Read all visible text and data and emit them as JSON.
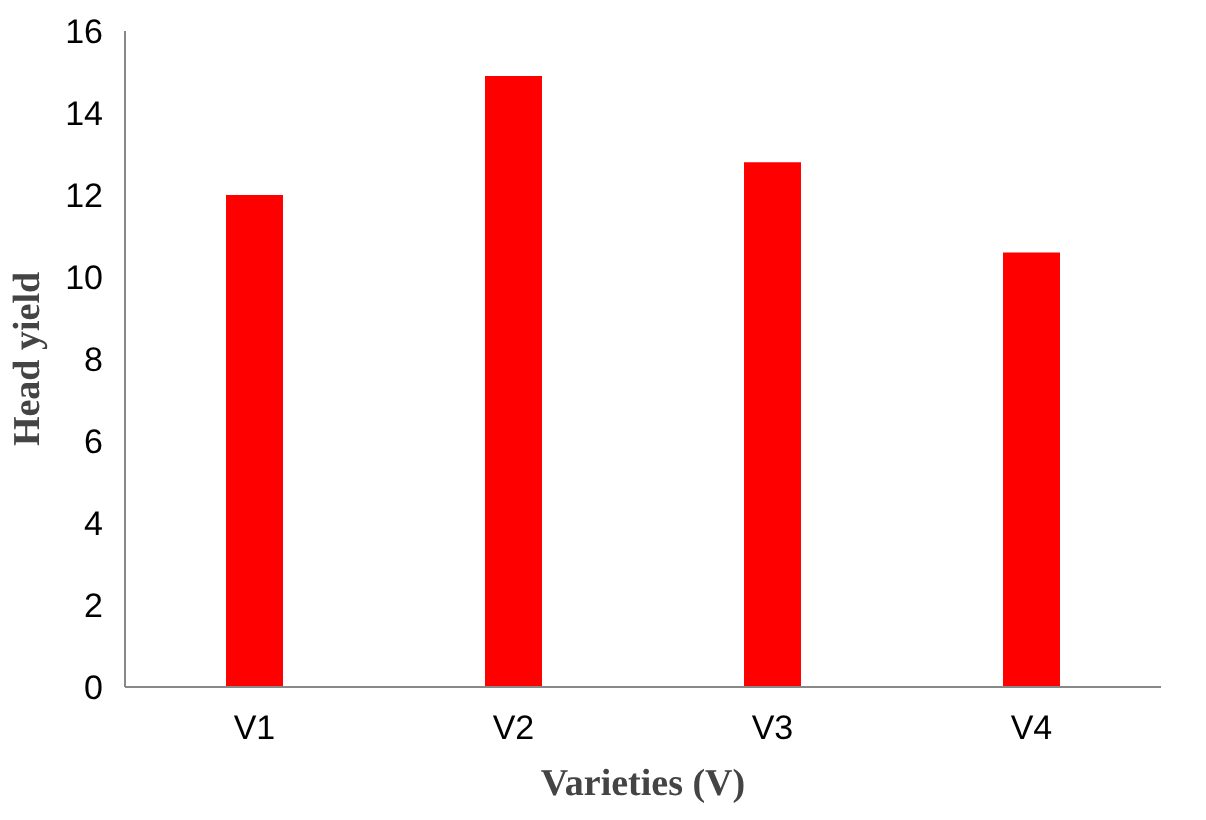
{
  "chart_data": {
    "type": "bar",
    "categories": [
      "V1",
      "V2",
      "V3",
      "V4"
    ],
    "values": [
      12.0,
      14.9,
      12.8,
      10.6
    ],
    "color": "#ff0000",
    "xlabel": "Varieties (V)",
    "ylabel": "Head yield",
    "ylim": [
      0,
      16
    ],
    "yticks": [
      0,
      2,
      4,
      6,
      8,
      10,
      12,
      14,
      16
    ],
    "grid": false
  }
}
